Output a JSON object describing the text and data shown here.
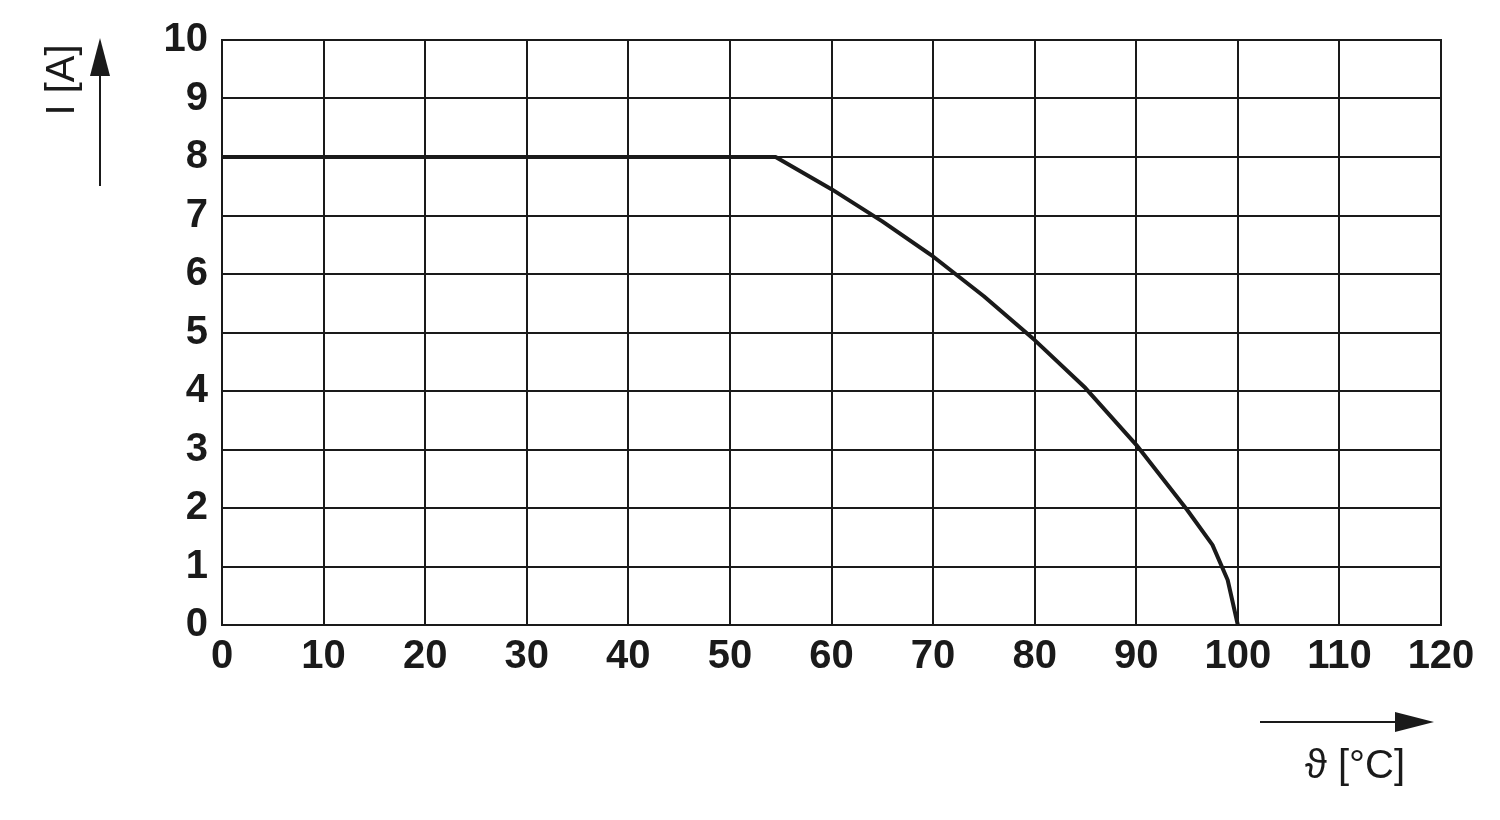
{
  "chart_data": {
    "type": "line",
    "xlabel": "ϑ [°C]",
    "ylabel": "I [A]",
    "x": [
      0,
      54.5,
      60,
      65,
      70,
      75,
      80,
      85,
      90,
      95,
      97.5,
      99,
      100
    ],
    "series": [
      {
        "color": "#1a1a1a",
        "values": [
          8,
          8,
          7.45,
          6.9,
          6.3,
          5.62,
          4.87,
          4.05,
          3.08,
          1.97,
          1.37,
          0.77,
          0
        ]
      }
    ],
    "xlim": [
      0,
      120
    ],
    "xticks": [
      0,
      10,
      20,
      30,
      40,
      50,
      60,
      70,
      80,
      90,
      100,
      110,
      120
    ],
    "ylim": [
      0,
      10
    ],
    "yticks": [
      0,
      1,
      2,
      3,
      4,
      5,
      6,
      7,
      8,
      9,
      10
    ],
    "grid": true,
    "legend": false,
    "marker": "none",
    "line_style": "solid"
  }
}
